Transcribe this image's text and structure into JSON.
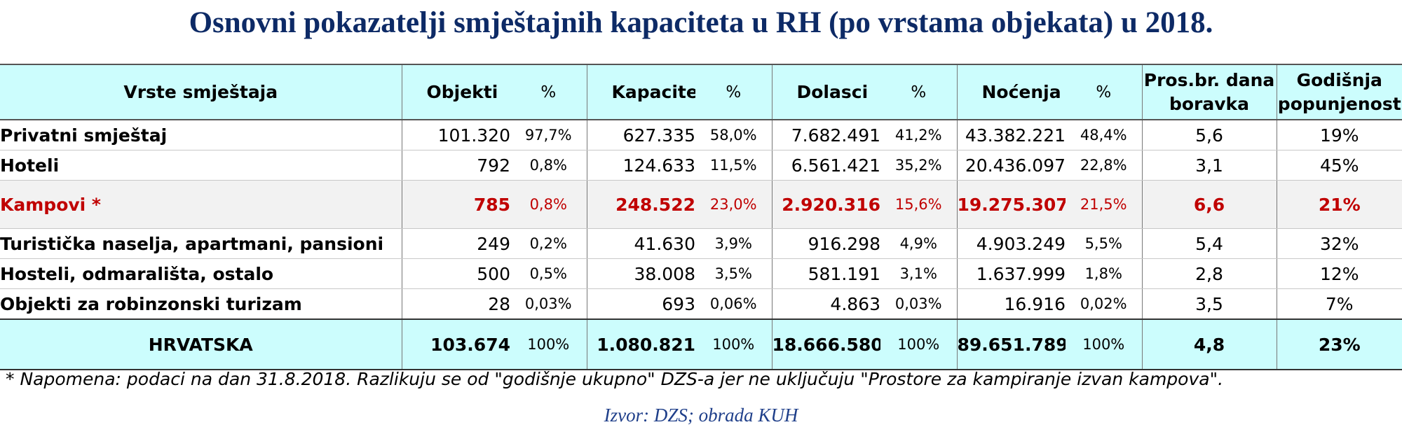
{
  "title": "Osnovni pokazatelji smještajnih kapaciteta u RH (po vrstama objekata) u 2018.",
  "header": {
    "type": "Vrste smještaja",
    "objects": "Objekti",
    "capacity": "Kapacitet",
    "arrivals": "Dolasci",
    "nights": "Noćenja",
    "pct": "%",
    "avg_stay": "Pros.br. dana boravka",
    "occupancy": "Godišnja popunjenost"
  },
  "rows": [
    {
      "name": "Privatni smještaj",
      "objects": "101.320",
      "objects_pct": "97,7%",
      "capacity": "627.335",
      "capacity_pct": "58,0%",
      "arrivals": "7.682.491",
      "arrivals_pct": "41,2%",
      "nights": "43.382.221",
      "nights_pct": "48,4%",
      "avg": "5,6",
      "occ": "19%"
    },
    {
      "name": "Hoteli",
      "objects": "792",
      "objects_pct": "0,8%",
      "capacity": "124.633",
      "capacity_pct": "11,5%",
      "arrivals": "6.561.421",
      "arrivals_pct": "35,2%",
      "nights": "20.436.097",
      "nights_pct": "22,8%",
      "avg": "3,1",
      "occ": "45%"
    },
    {
      "name": "Kampovi *",
      "objects": "785",
      "objects_pct": "0,8%",
      "capacity": "248.522",
      "capacity_pct": "23,0%",
      "arrivals": "2.920.316",
      "arrivals_pct": "15,6%",
      "nights": "19.275.307",
      "nights_pct": "21,5%",
      "avg": "6,6",
      "occ": "21%"
    },
    {
      "name": "Turistička naselja, apartmani, pansioni",
      "objects": "249",
      "objects_pct": "0,2%",
      "capacity": "41.630",
      "capacity_pct": "3,9%",
      "arrivals": "916.298",
      "arrivals_pct": "4,9%",
      "nights": "4.903.249",
      "nights_pct": "5,5%",
      "avg": "5,4",
      "occ": "32%"
    },
    {
      "name": "Hosteli, odmarališta, ostalo",
      "objects": "500",
      "objects_pct": "0,5%",
      "capacity": "38.008",
      "capacity_pct": "3,5%",
      "arrivals": "581.191",
      "arrivals_pct": "3,1%",
      "nights": "1.637.999",
      "nights_pct": "1,8%",
      "avg": "2,8",
      "occ": "12%"
    },
    {
      "name": "Objekti za robinzonski turizam",
      "objects": "28",
      "objects_pct": "0,03%",
      "capacity": "693",
      "capacity_pct": "0,06%",
      "arrivals": "4.863",
      "arrivals_pct": "0,03%",
      "nights": "16.916",
      "nights_pct": "0,02%",
      "avg": "3,5",
      "occ": "7%"
    }
  ],
  "total": {
    "name": "HRVATSKA",
    "objects": "103.674",
    "objects_pct": "100%",
    "capacity": "1.080.821",
    "capacity_pct": "100%",
    "arrivals": "18.666.580",
    "arrivals_pct": "100%",
    "nights": "89.651.789",
    "nights_pct": "100%",
    "avg": "4,8",
    "occ": "23%"
  },
  "note": "* Napomena: podaci na dan 31.8.2018. Razlikuju se od \"godišnje ukupno\" DZS-a jer ne uključuju \"Prostore za kampiranje izvan kampova\".",
  "source": "Izvor: DZS; obrada KUH",
  "colors": {
    "title": "#0d2a66",
    "highlight": "#c00000",
    "header_bg": "#ccfdfd",
    "source": "#1f3f8a"
  }
}
